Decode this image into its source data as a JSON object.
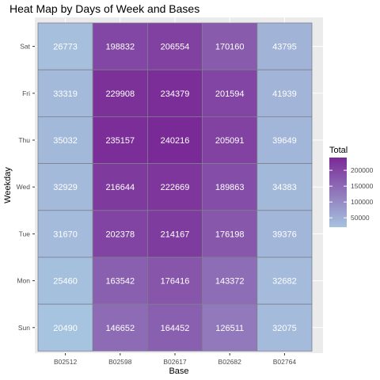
{
  "chart_data": {
    "type": "heatmap",
    "title": "Heat Map by Days of Week and Bases",
    "xlabel": "Base",
    "ylabel": "Weekday",
    "x_categories": [
      "B02512",
      "B02598",
      "B02617",
      "B02682",
      "B02764"
    ],
    "y_categories": [
      "Sat",
      "Fri",
      "Thu",
      "Wed",
      "Tue",
      "Mon",
      "Sun"
    ],
    "values": [
      [
        26773,
        198832,
        206554,
        170160,
        43795
      ],
      [
        33319,
        229908,
        234379,
        201594,
        41939
      ],
      [
        35032,
        235157,
        240216,
        205091,
        39649
      ],
      [
        32929,
        216644,
        222669,
        189863,
        34383
      ],
      [
        31670,
        202378,
        214167,
        176198,
        39376
      ],
      [
        25460,
        163542,
        176416,
        143372,
        32682
      ],
      [
        20490,
        146652,
        164452,
        126511,
        32075
      ]
    ],
    "legend": {
      "title": "Total",
      "ticks": [
        "50000",
        "100000",
        "150000",
        "200000"
      ],
      "tick_values": [
        50000,
        100000,
        150000,
        200000
      ],
      "color_low": "#a6c3df",
      "color_high": "#7a2a96",
      "range": [
        20490,
        240216
      ],
      "placement": "right"
    },
    "background_color": "#ebebeb",
    "grid_color": "#ffffff",
    "grid": true
  }
}
